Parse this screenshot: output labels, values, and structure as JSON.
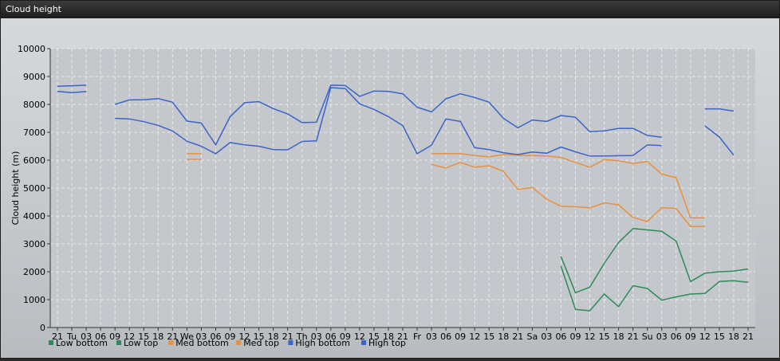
{
  "window": {
    "title": "Cloud height"
  },
  "chart_data": {
    "type": "line",
    "ylabel": "Cloud height (m)",
    "ylim": [
      0,
      10000
    ],
    "yticks": [
      0,
      1000,
      2000,
      3000,
      4000,
      5000,
      6000,
      7000,
      8000,
      9000,
      10000
    ],
    "xticklabels": [
      "21",
      "Tu",
      "03",
      "06",
      "09",
      "12",
      "15",
      "18",
      "21",
      "We",
      "03",
      "06",
      "09",
      "12",
      "15",
      "18",
      "21",
      "Th",
      "03",
      "06",
      "09",
      "12",
      "15",
      "18",
      "21",
      "Fr",
      "03",
      "06",
      "09",
      "12",
      "15",
      "18",
      "21",
      "Sa",
      "03",
      "06",
      "09",
      "12",
      "15",
      "18",
      "21",
      "Su",
      "03",
      "06",
      "09",
      "12",
      "15",
      "18",
      "21"
    ],
    "grid": true,
    "legend_position": "bottom-left",
    "series": [
      {
        "name": "Low bottom",
        "color": "#2e8b57",
        "values": [
          null,
          null,
          null,
          null,
          null,
          null,
          null,
          null,
          null,
          null,
          null,
          null,
          null,
          null,
          null,
          null,
          null,
          null,
          null,
          null,
          null,
          null,
          null,
          null,
          null,
          null,
          null,
          null,
          null,
          null,
          null,
          null,
          null,
          null,
          null,
          2200,
          650,
          600,
          1200,
          750,
          1500,
          1400,
          980,
          1100,
          1200,
          1220,
          1650,
          1680,
          1620
        ]
      },
      {
        "name": "Low top",
        "color": "#2e8b57",
        "values": [
          null,
          null,
          null,
          null,
          null,
          null,
          null,
          null,
          null,
          null,
          null,
          null,
          null,
          null,
          null,
          null,
          null,
          null,
          null,
          null,
          null,
          null,
          null,
          null,
          null,
          null,
          null,
          null,
          null,
          null,
          null,
          null,
          null,
          null,
          null,
          2550,
          1250,
          1450,
          2300,
          3050,
          3550,
          3500,
          3450,
          3100,
          1650,
          1950,
          2000,
          2020,
          2100
        ]
      },
      {
        "name": "Med bottom",
        "color": "#e8903a",
        "values": [
          null,
          null,
          null,
          null,
          null,
          null,
          null,
          null,
          null,
          6030,
          6030,
          null,
          null,
          null,
          null,
          null,
          null,
          null,
          null,
          null,
          null,
          null,
          null,
          null,
          null,
          null,
          5850,
          5720,
          5920,
          5750,
          5800,
          5600,
          4950,
          5020,
          4600,
          4350,
          4330,
          4290,
          4470,
          4400,
          3950,
          3800,
          4300,
          4270,
          3620,
          3620,
          null,
          null,
          null
        ]
      },
      {
        "name": "Med top",
        "color": "#e8903a",
        "values": [
          null,
          null,
          null,
          null,
          null,
          null,
          null,
          null,
          null,
          6230,
          6230,
          null,
          null,
          null,
          null,
          null,
          null,
          null,
          null,
          null,
          null,
          null,
          null,
          null,
          null,
          null,
          6230,
          6230,
          6230,
          6170,
          6120,
          6200,
          6180,
          6170,
          6150,
          6100,
          5920,
          5750,
          6020,
          5980,
          5880,
          5950,
          5500,
          5370,
          3930,
          3930,
          null,
          null,
          null
        ]
      },
      {
        "name": "High bottom",
        "color": "#3b63c8",
        "values": [
          8470,
          8420,
          8460,
          null,
          7500,
          7480,
          7380,
          7250,
          7050,
          6680,
          6500,
          6230,
          6630,
          6550,
          6500,
          6380,
          6370,
          6670,
          6690,
          8600,
          8570,
          8020,
          7820,
          7560,
          7240,
          6230,
          6540,
          7480,
          7390,
          6450,
          6380,
          6270,
          6200,
          6290,
          6250,
          6470,
          6300,
          6150,
          6150,
          6160,
          6170,
          6550,
          6520,
          null,
          null,
          7230,
          6830,
          6180,
          null
        ]
      },
      {
        "name": "High top",
        "color": "#3b63c8",
        "values": [
          8650,
          8670,
          8690,
          null,
          8000,
          8160,
          8170,
          8210,
          8080,
          7400,
          7330,
          6550,
          7560,
          8060,
          8100,
          7850,
          7660,
          7350,
          7360,
          8690,
          8680,
          8290,
          8480,
          8470,
          8380,
          7900,
          7730,
          8200,
          8380,
          8250,
          8080,
          7500,
          7160,
          7440,
          7390,
          7600,
          7540,
          7020,
          7050,
          7140,
          7140,
          6890,
          6820,
          null,
          null,
          7840,
          7840,
          7760,
          null
        ]
      }
    ]
  }
}
